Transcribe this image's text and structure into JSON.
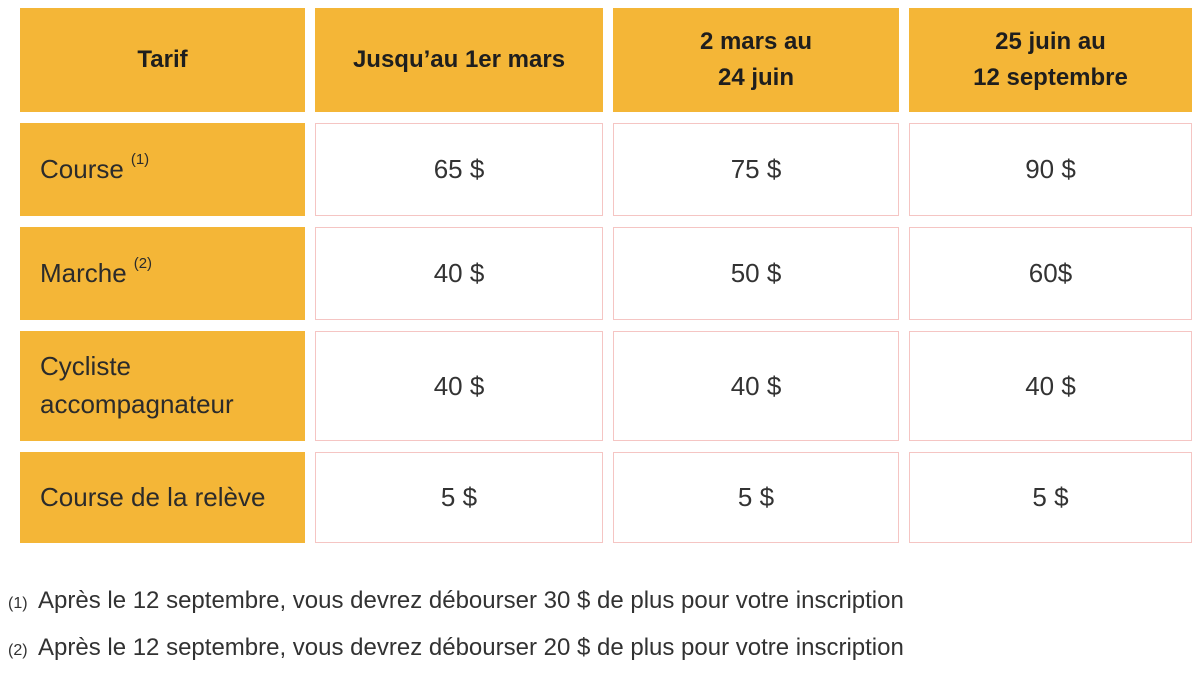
{
  "table": {
    "headers": [
      "Tarif",
      "Jusqu’au 1er mars",
      "2 mars au\n24 juin",
      "25 juin au\n12 septembre"
    ],
    "rows": [
      {
        "label": "Course",
        "sup": "(1)",
        "values": [
          "65 $",
          "75 $",
          "90 $"
        ]
      },
      {
        "label": "Marche",
        "sup": "(2)",
        "values": [
          "40 $",
          "50 $",
          "60$"
        ]
      },
      {
        "label": "Cycliste accompagnateur",
        "sup": "",
        "values": [
          "40 $",
          "40 $",
          "40 $"
        ]
      },
      {
        "label": "Course de la relève",
        "sup": "",
        "values": [
          "5 $",
          "5 $",
          "5 $"
        ]
      }
    ]
  },
  "footnotes": [
    {
      "marker": "(1)",
      "text": "Après le 12 septembre, vous devrez débourser 30 $ de plus pour votre inscription"
    },
    {
      "marker": "(2)",
      "text": "Après le 12 septembre, vous devrez débourser 20 $ de plus pour votre inscription"
    }
  ],
  "colors": {
    "header_bg": "#F4B637",
    "cell_border": "#F5C5C3",
    "header_text": "#1E1E1E",
    "body_text": "#2B2B2B"
  }
}
